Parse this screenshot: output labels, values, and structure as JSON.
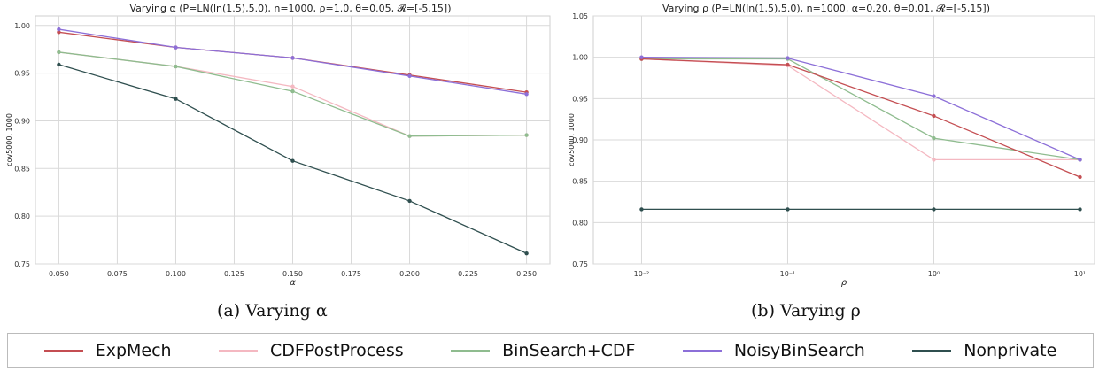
{
  "chart_data": [
    {
      "type": "line",
      "title": "Varying α (P=LN(ln(1.5),5.0), n=1000, ρ=1.0, θ=0.05, 𝓡=[-5,15])",
      "xlabel": "α",
      "ylabel": "cov5000, 1000",
      "x": [
        0.05,
        0.1,
        0.15,
        0.2,
        0.25
      ],
      "xlim": [
        0.04,
        0.26
      ],
      "ylim": [
        0.75,
        1.01
      ],
      "x_ticks": [
        "0.050",
        "0.075",
        "0.100",
        "0.125",
        "0.150",
        "0.175",
        "0.200",
        "0.225",
        "0.250"
      ],
      "y_ticks": [
        "0.75",
        "0.80",
        "0.85",
        "0.90",
        "0.95",
        "1.00"
      ],
      "grid": true,
      "series": [
        {
          "name": "ExpMech",
          "color": "#c44e52",
          "values": [
            0.993,
            0.977,
            0.966,
            0.948,
            0.93
          ]
        },
        {
          "name": "CDFPostProcess",
          "color": "#f4b8c1",
          "values": [
            0.972,
            0.957,
            0.936,
            0.884,
            0.885
          ]
        },
        {
          "name": "BinSearch+CDF",
          "color": "#8fbc8f",
          "values": [
            0.972,
            0.957,
            0.931,
            0.884,
            0.885
          ]
        },
        {
          "name": "NoisyBinSearch",
          "color": "#8c6fd8",
          "values": [
            0.996,
            0.977,
            0.966,
            0.947,
            0.928
          ]
        },
        {
          "name": "Nonprivate",
          "color": "#2f4f4f",
          "values": [
            0.959,
            0.923,
            0.858,
            0.816,
            0.761
          ]
        }
      ]
    },
    {
      "type": "line",
      "title": "Varying ρ (P=LN(ln(1.5),5.0), n=1000, α=0.20, θ=0.01, 𝓡=[-5,15])",
      "xlabel": "ρ",
      "ylabel": "cov5000, 1000",
      "xscale": "log",
      "x": [
        0.01,
        0.1,
        1,
        10
      ],
      "ylim": [
        0.75,
        1.05
      ],
      "x_ticks": [
        "10⁻²",
        "10⁻¹",
        "10⁰",
        "10¹"
      ],
      "y_ticks": [
        "0.75",
        "0.80",
        "0.85",
        "0.90",
        "0.95",
        "1.00",
        "1.05"
      ],
      "grid": true,
      "series": [
        {
          "name": "ExpMech",
          "color": "#c44e52",
          "values": [
            0.998,
            0.991,
            0.929,
            0.855
          ]
        },
        {
          "name": "CDFPostProcess",
          "color": "#f4b8c1",
          "values": [
            0.998,
            0.99,
            0.876,
            0.876
          ]
        },
        {
          "name": "BinSearch+CDF",
          "color": "#8fbc8f",
          "values": [
            0.998,
            0.998,
            0.902,
            0.876
          ]
        },
        {
          "name": "NoisyBinSearch",
          "color": "#8c6fd8",
          "values": [
            1.0,
            0.999,
            0.953,
            0.876
          ]
        },
        {
          "name": "Nonprivate",
          "color": "#2f4f4f",
          "values": [
            0.816,
            0.816,
            0.816,
            0.816
          ]
        }
      ]
    }
  ],
  "captions": {
    "a": "(a) Varying α",
    "b": "(b) Varying ρ"
  },
  "legend": [
    {
      "label": "ExpMech",
      "color": "#c44e52"
    },
    {
      "label": "CDFPostProcess",
      "color": "#f4b8c1"
    },
    {
      "label": "BinSearch+CDF",
      "color": "#8fbc8f"
    },
    {
      "label": "NoisyBinSearch",
      "color": "#8c6fd8"
    },
    {
      "label": "Nonprivate",
      "color": "#2f4f4f"
    }
  ]
}
